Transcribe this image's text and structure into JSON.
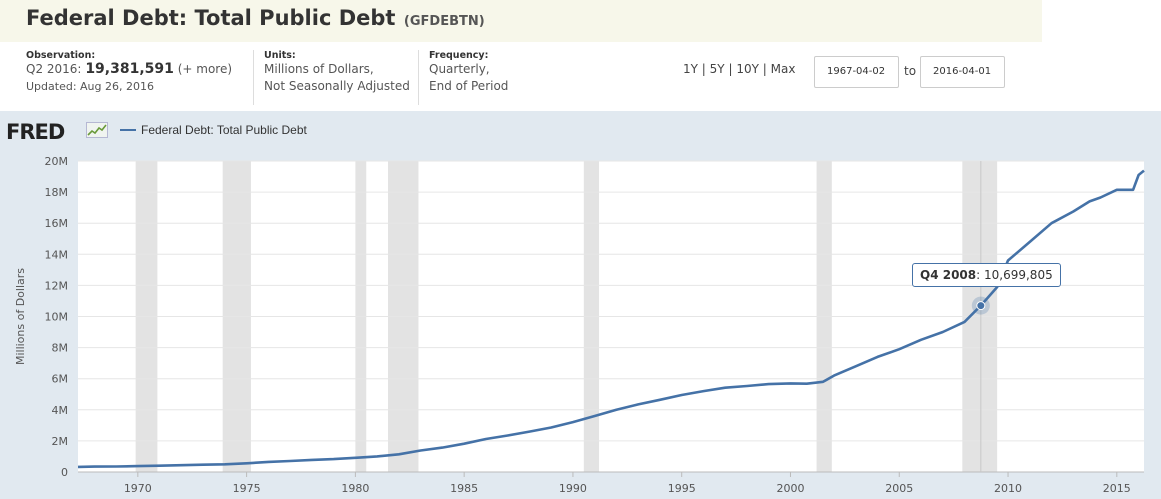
{
  "header": {
    "title": "Federal Debt: Total Public Debt",
    "series_id": "(GFDEBTN)"
  },
  "observation": {
    "label": "Observation:",
    "period": "Q2 2016:",
    "value": "19,381,591",
    "more": "(+ more)",
    "updated": "Updated: Aug 26, 2016"
  },
  "units": {
    "label": "Units:",
    "line1": "Millions of Dollars,",
    "line2": "Not Seasonally Adjusted"
  },
  "frequency": {
    "label": "Frequency:",
    "line1": "Quarterly,",
    "line2": "End of Period"
  },
  "range": {
    "links": [
      "1Y",
      "5Y",
      "10Y",
      "Max"
    ],
    "separator": "|",
    "from": "1967-04-02",
    "to_label": "to",
    "to": "2016-04-01"
  },
  "logo": "FRED",
  "tooltip": {
    "period": "Q4 2008",
    "value": "10,699,805"
  },
  "chart_data": {
    "type": "line",
    "title": "",
    "ylabel": "Millions of Dollars",
    "xlabel": "",
    "xlim": [
      1967.25,
      2016.25
    ],
    "ylim": [
      0,
      20000000
    ],
    "y_ticks": [
      0,
      2000000,
      4000000,
      6000000,
      8000000,
      10000000,
      12000000,
      14000000,
      16000000,
      18000000,
      20000000
    ],
    "y_tick_labels": [
      "0",
      "2M",
      "4M",
      "6M",
      "8M",
      "10M",
      "12M",
      "14M",
      "16M",
      "18M",
      "20M"
    ],
    "x_ticks": [
      1970,
      1975,
      1980,
      1985,
      1990,
      1995,
      2000,
      2005,
      2010,
      2015
    ],
    "x_tick_labels": [
      "1970",
      "1975",
      "1980",
      "1985",
      "1990",
      "1995",
      "2000",
      "2005",
      "2010",
      "2015"
    ],
    "legend": "top-left",
    "grid": true,
    "recessions": [
      [
        1969.9,
        1970.9
      ],
      [
        1973.9,
        1975.2
      ],
      [
        1980.0,
        1980.5
      ],
      [
        1981.5,
        1982.9
      ],
      [
        1990.5,
        1991.2
      ],
      [
        2001.2,
        2001.9
      ],
      [
        2007.9,
        2009.5
      ]
    ],
    "highlight": {
      "x": 2008.75,
      "y": 10699805
    },
    "series": [
      {
        "name": "Federal Debt: Total Public Debt",
        "color": "#4572a7",
        "x": [
          1967.25,
          1968,
          1969,
          1970,
          1971,
          1972,
          1973,
          1974,
          1975,
          1976,
          1977,
          1978,
          1979,
          1980,
          1981,
          1982,
          1983,
          1984,
          1985,
          1986,
          1987,
          1988,
          1989,
          1990,
          1991,
          1992,
          1993,
          1994,
          1995,
          1996,
          1997,
          1998,
          1999,
          2000,
          2000.75,
          2001.5,
          2002,
          2003,
          2004,
          2005,
          2006,
          2007,
          2008,
          2008.75,
          2009.5,
          2010,
          2011,
          2012,
          2013,
          2013.75,
          2014.25,
          2015,
          2015.75,
          2016,
          2016.25
        ],
        "y": [
          330000,
          345000,
          355000,
          380000,
          405000,
          440000,
          470000,
          495000,
          560000,
          650000,
          710000,
          775000,
          830000,
          910000,
          1000000,
          1140000,
          1380000,
          1570000,
          1820000,
          2120000,
          2350000,
          2600000,
          2860000,
          3210000,
          3600000,
          4000000,
          4350000,
          4640000,
          4950000,
          5200000,
          5420000,
          5530000,
          5650000,
          5700000,
          5680000,
          5800000,
          6200000,
          6800000,
          7400000,
          7900000,
          8500000,
          9000000,
          9650000,
          10699805,
          11900000,
          13600000,
          14800000,
          16000000,
          16750000,
          17400000,
          17650000,
          18150000,
          18150000,
          19100000,
          19381591
        ]
      }
    ]
  }
}
